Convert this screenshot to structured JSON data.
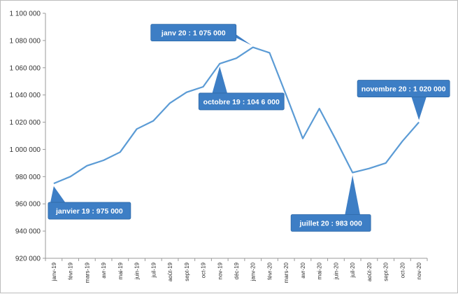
{
  "chart_data": {
    "type": "line",
    "title": "",
    "xlabel": "",
    "ylabel": "",
    "ylim": [
      920000,
      1100000
    ],
    "ytick_step": 20000,
    "y_tick_labels": [
      "920 000",
      "940 000",
      "960 000",
      "980 000",
      "1 000 000",
      "1 020 000",
      "1 040 000",
      "1 060 000",
      "1 080 000",
      "1 100 000"
    ],
    "grid": false,
    "legend": "none",
    "categories": [
      "janv-19",
      "févr-19",
      "mars-19",
      "avr-19",
      "mai-19",
      "juin-19",
      "juil-19",
      "août-19",
      "sept-19",
      "oct-19",
      "nov-19",
      "déc-19",
      "janv-20",
      "févr-20",
      "mars-20",
      "avr-20",
      "mai-20",
      "juin-20",
      "juil-20",
      "août-20",
      "sept-20",
      "oct-20",
      "nov-20"
    ],
    "series": [
      {
        "values": [
          975000,
          980000,
          988000,
          992000,
          998000,
          1015000,
          1021000,
          1034000,
          1042000,
          1046000,
          1063000,
          1067000,
          1075000,
          1071000,
          1040000,
          1008000,
          1030000,
          1007000,
          983000,
          986000,
          990000,
          1006000,
          1020000
        ]
      }
    ],
    "line_color": "#5b9bd5",
    "annotations": [
      {
        "text": "janv 20 : 1 075 000",
        "index": 12,
        "anchor": "above-left"
      },
      {
        "text": "janvier 19 : 975 000",
        "index": 0,
        "anchor": "below"
      },
      {
        "text": "octobre 19 : 104 6 000",
        "index": 10,
        "anchor": "below"
      },
      {
        "text": "juillet 20 : 983 000",
        "index": 18,
        "anchor": "below"
      },
      {
        "text": "novembre 20 : 1 020 000",
        "index": 22,
        "anchor": "above"
      }
    ],
    "callout_color": "#3d7ec5"
  }
}
